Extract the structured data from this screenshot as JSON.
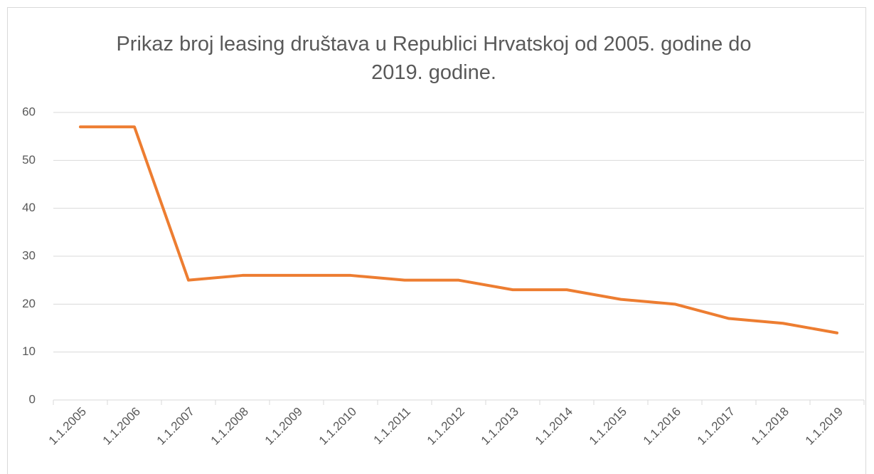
{
  "chart_data": {
    "type": "line",
    "title": "Prikaz broj leasing društava u Republici Hrvatskoj od 2005. godine do 2019. godine.",
    "categories": [
      "1.1.2005",
      "1.1.2006",
      "1.1.2007",
      "1.1.2008",
      "1.1.2009",
      "1.1.2010",
      "1.1.2011",
      "1.1.2012",
      "1.1.2013",
      "1.1.2014",
      "1.1.2015",
      "1.1.2016",
      "1.1.2017",
      "1.1.2018",
      "1.1.2019"
    ],
    "values": [
      57,
      57,
      25,
      26,
      26,
      26,
      25,
      25,
      23,
      23,
      21,
      20,
      17,
      16,
      14
    ],
    "color": "#ed7d31",
    "ylim": [
      0,
      60
    ],
    "yticks": [
      0,
      10,
      20,
      30,
      40,
      50,
      60
    ],
    "grid": true
  }
}
